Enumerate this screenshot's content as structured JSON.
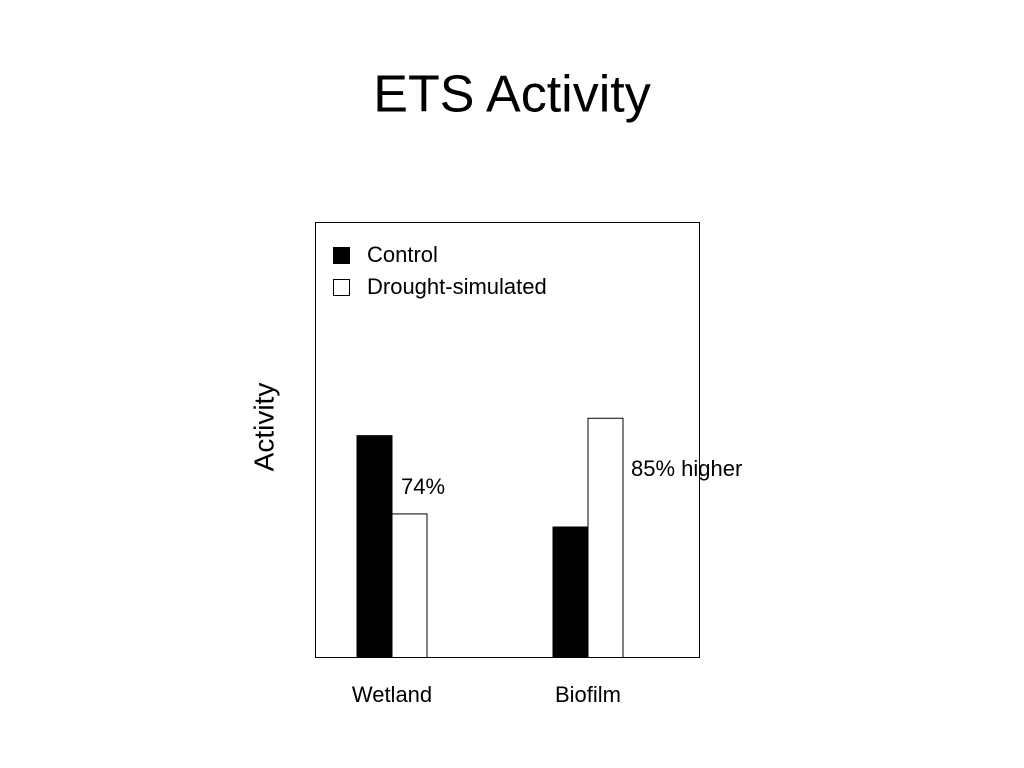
{
  "chart_data": {
    "type": "bar",
    "title": "ETS Activity",
    "y_label": "Activity",
    "categories": [
      "Wetland",
      "Biofilm"
    ],
    "series": [
      {
        "name": "Control",
        "color": "#000000",
        "values": [
          51,
          30
        ]
      },
      {
        "name": "Drought-simulated",
        "color": "#ffffff",
        "values": [
          33,
          55
        ]
      }
    ],
    "ylim": [
      0,
      100
    ],
    "annotations": [
      "74%",
      "85% higher"
    ]
  }
}
